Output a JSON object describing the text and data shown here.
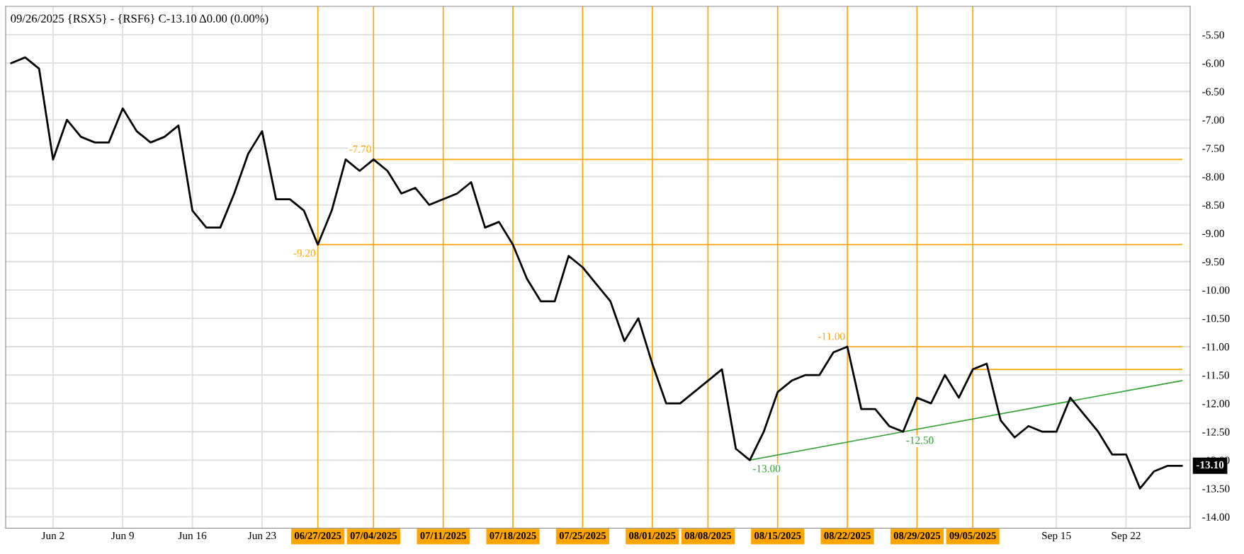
{
  "chart_data": {
    "type": "line",
    "title": "09/26/2025 {RSX5} - {RSF6} C-13.10 Δ0.00 (0.00%)",
    "categories": [
      null,
      null,
      null,
      "Jun 2",
      null,
      null,
      null,
      null,
      "Jun 9",
      null,
      null,
      null,
      null,
      "Jun 16",
      null,
      null,
      null,
      null,
      "Jun 23",
      null,
      null,
      null,
      "06/27/2025",
      null,
      null,
      null,
      "07/04/2025",
      null,
      null,
      null,
      null,
      "07/11/2025",
      null,
      null,
      null,
      null,
      "07/18/2025",
      null,
      null,
      null,
      null,
      "07/25/2025",
      null,
      null,
      null,
      null,
      "08/01/2025",
      null,
      null,
      null,
      "08/08/2025",
      null,
      null,
      null,
      null,
      "08/15/2025",
      null,
      null,
      null,
      null,
      "08/22/2025",
      null,
      null,
      null,
      null,
      "08/29/2025",
      null,
      null,
      null,
      "09/05/2025",
      null,
      null,
      null,
      null,
      null,
      "Sep 15",
      null,
      null,
      null,
      null,
      "Sep 22",
      null,
      null,
      null,
      null
    ],
    "series": [
      {
        "color": "#000000",
        "values": [
          -6.0,
          -5.9,
          -6.1,
          -7.7,
          -7.0,
          -7.3,
          -7.4,
          -7.4,
          -6.8,
          -7.2,
          -7.4,
          -7.3,
          -7.1,
          -8.6,
          -8.9,
          -8.9,
          -8.3,
          -7.6,
          -7.2,
          -8.4,
          -8.4,
          -8.6,
          -9.2,
          -8.6,
          -7.7,
          -7.9,
          -7.7,
          -7.9,
          -8.3,
          -8.2,
          -8.5,
          -8.4,
          -8.3,
          -8.1,
          -8.9,
          -8.8,
          -9.2,
          -9.8,
          -10.2,
          -10.2,
          -9.4,
          -9.6,
          -9.9,
          -10.2,
          -10.9,
          -10.5,
          -11.3,
          -12.0,
          -12.0,
          -11.8,
          -11.6,
          -11.4,
          -12.8,
          -13.0,
          -12.5,
          -11.8,
          -11.6,
          -11.5,
          -11.5,
          -11.1,
          -11.0,
          -12.1,
          -12.1,
          -12.4,
          -12.5,
          -11.9,
          -12.0,
          -11.5,
          -11.9,
          -11.4,
          -11.3,
          -12.3,
          -12.6,
          -12.4,
          -12.5,
          -12.5,
          -11.9,
          -12.2,
          -12.5,
          -12.9,
          -12.9,
          -13.5,
          -13.2,
          -13.1,
          -13.1
        ]
      },
      {
        "color": "#2ca02c",
        "values": [
          null,
          null,
          null,
          null,
          null,
          null,
          null,
          null,
          null,
          null,
          null,
          null,
          null,
          null,
          null,
          null,
          null,
          null,
          null,
          null,
          null,
          null,
          null,
          null,
          null,
          null,
          null,
          null,
          null,
          null,
          null,
          null,
          null,
          null,
          null,
          null,
          null,
          null,
          null,
          null,
          null,
          null,
          null,
          null,
          null,
          null,
          null,
          null,
          null,
          null,
          null,
          null,
          null,
          -13.0,
          null,
          null,
          null,
          null,
          null,
          null,
          null,
          null,
          null,
          null,
          -12.5,
          null,
          null,
          null,
          null,
          null,
          null,
          null,
          null,
          null,
          null,
          null,
          null,
          null,
          null,
          null,
          null,
          null,
          null,
          null,
          -11.6
        ]
      },
      {
        "color": "#ffa500",
        "values": [
          null,
          null,
          null,
          null,
          null,
          null,
          null,
          null,
          null,
          null,
          null,
          null,
          null,
          null,
          null,
          null,
          null,
          null,
          null,
          null,
          null,
          null,
          -9.2,
          null,
          null,
          null,
          null,
          null,
          null,
          null,
          null,
          null,
          null,
          null,
          null,
          null,
          null,
          null,
          null,
          null,
          null,
          null,
          null,
          null,
          null,
          null,
          null,
          null,
          null,
          null,
          null,
          null,
          null,
          null,
          null,
          null,
          null,
          null,
          null,
          null,
          null,
          null,
          null,
          null,
          null,
          null,
          null,
          null,
          null,
          null,
          null,
          null,
          null,
          null,
          null,
          null,
          null,
          null,
          null,
          null,
          null,
          null,
          null,
          null,
          -9.2
        ]
      },
      {
        "color": "#ffa500",
        "values": [
          null,
          null,
          null,
          null,
          null,
          null,
          null,
          null,
          null,
          null,
          null,
          null,
          null,
          null,
          null,
          null,
          null,
          null,
          null,
          null,
          null,
          null,
          null,
          null,
          null,
          null,
          -7.7,
          null,
          null,
          null,
          null,
          null,
          null,
          null,
          null,
          null,
          null,
          null,
          null,
          null,
          null,
          null,
          null,
          null,
          null,
          null,
          null,
          null,
          null,
          null,
          null,
          null,
          null,
          null,
          null,
          null,
          null,
          null,
          null,
          null,
          null,
          null,
          null,
          null,
          null,
          null,
          null,
          null,
          null,
          null,
          null,
          null,
          null,
          null,
          null,
          null,
          null,
          null,
          null,
          null,
          null,
          null,
          null,
          null,
          -7.7
        ]
      },
      {
        "color": "#ffa500",
        "values": [
          null,
          null,
          null,
          null,
          null,
          null,
          null,
          null,
          null,
          null,
          null,
          null,
          null,
          null,
          null,
          null,
          null,
          null,
          null,
          null,
          null,
          null,
          null,
          null,
          null,
          null,
          null,
          null,
          null,
          null,
          null,
          null,
          null,
          null,
          null,
          null,
          null,
          null,
          null,
          null,
          null,
          null,
          null,
          null,
          null,
          null,
          null,
          null,
          null,
          null,
          null,
          null,
          null,
          null,
          null,
          null,
          null,
          null,
          null,
          null,
          -11.0,
          null,
          null,
          null,
          null,
          null,
          null,
          null,
          null,
          null,
          null,
          null,
          null,
          null,
          null,
          null,
          null,
          null,
          null,
          null,
          null,
          null,
          null,
          null,
          -11.0
        ]
      },
      {
        "color": "#ffa500",
        "values": [
          null,
          null,
          null,
          null,
          null,
          null,
          null,
          null,
          null,
          null,
          null,
          null,
          null,
          null,
          null,
          null,
          null,
          null,
          null,
          null,
          null,
          null,
          null,
          null,
          null,
          null,
          null,
          null,
          null,
          null,
          null,
          null,
          null,
          null,
          null,
          null,
          null,
          null,
          null,
          null,
          null,
          null,
          null,
          null,
          null,
          null,
          null,
          null,
          null,
          null,
          null,
          null,
          null,
          null,
          null,
          null,
          null,
          null,
          null,
          null,
          null,
          null,
          null,
          null,
          null,
          null,
          null,
          null,
          null,
          -11.4,
          null,
          null,
          null,
          null,
          null,
          null,
          null,
          null,
          null,
          null,
          null,
          null,
          null,
          null,
          -11.4
        ]
      }
    ],
    "annotations": [
      {
        "text": "-9.20",
        "x": "06/27/2025",
        "y": -9.2
      },
      {
        "text": "-7.70",
        "x": "07/04/2025",
        "y": -7.7
      },
      {
        "text": "-11.00",
        "x": "08/22/2025",
        "y": -11.0
      },
      {
        "text": "-13.10"
      }
    ],
    "ref_lines": [
      {
        "axis": "x",
        "value": "06/27/2025",
        "color": "#ffa500"
      },
      {
        "axis": "x",
        "value": "07/04/2025",
        "color": "#ffa500"
      },
      {
        "axis": "x",
        "value": "07/11/2025",
        "color": "#ffa500"
      },
      {
        "axis": "x",
        "value": "07/18/2025",
        "color": "#ffa500"
      },
      {
        "axis": "x",
        "value": "07/25/2025",
        "color": "#ffa500"
      },
      {
        "axis": "x",
        "value": "08/01/2025",
        "color": "#ffa500"
      },
      {
        "axis": "x",
        "value": "08/08/2025",
        "color": "#ffa500"
      },
      {
        "axis": "x",
        "value": "08/15/2025",
        "color": "#ffa500"
      },
      {
        "axis": "x",
        "value": "08/22/2025",
        "color": "#ffa500"
      },
      {
        "axis": "x",
        "value": "08/29/2025",
        "color": "#ffa500"
      },
      {
        "axis": "x",
        "value": "09/05/2025",
        "color": "#ffa500"
      }
    ],
    "ylim": [
      -14.2,
      -5.0
    ],
    "yticks": [
      {
        "value": -5.5,
        "label": "-5.50"
      },
      {
        "value": -6.0,
        "label": "-6.00"
      },
      {
        "value": -6.5,
        "label": "-6.50"
      },
      {
        "value": -7.0,
        "label": "-7.00"
      },
      {
        "value": -7.5,
        "label": "-7.50"
      },
      {
        "value": -8.0,
        "label": "-8.00"
      },
      {
        "value": -8.5,
        "label": "-8.50"
      },
      {
        "value": -9.0,
        "label": "-9.00"
      },
      {
        "value": -9.5,
        "label": "-9.50"
      },
      {
        "value": -10.0,
        "label": "-10.00"
      },
      {
        "value": -10.5,
        "label": "-10.50"
      },
      {
        "value": -11.0,
        "label": "-11.00"
      },
      {
        "value": -11.5,
        "label": "-11.50"
      },
      {
        "value": -12.0,
        "label": "-12.00"
      },
      {
        "value": -12.5,
        "label": "-12.50"
      },
      {
        "value": -13.0,
        "label": "-13.00"
      },
      {
        "value": -13.5,
        "label": "-13.50"
      },
      {
        "value": -14.0,
        "label": "-14.00"
      }
    ],
    "grid": true,
    "legend": false,
    "marker": "none",
    "line_style": "solid"
  }
}
